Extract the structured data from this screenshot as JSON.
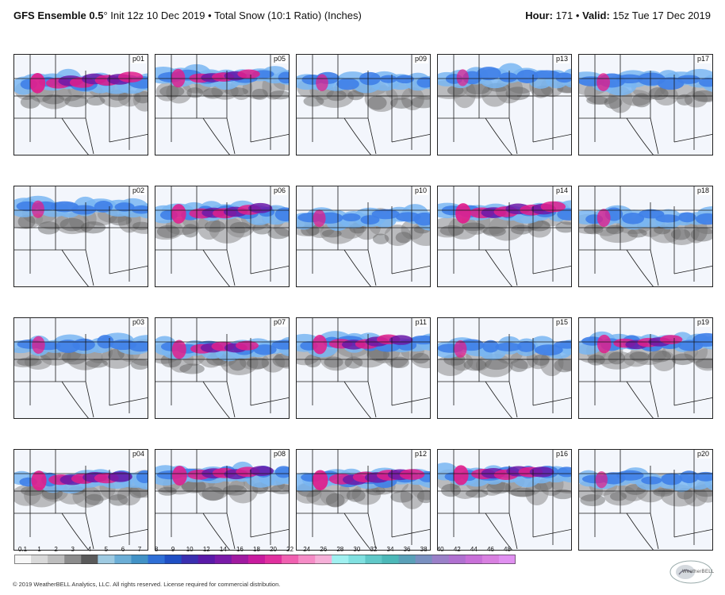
{
  "header": {
    "model": "GFS Ensemble 0.5",
    "degree": "°",
    "init": "Init 12z 10 Dec 2019",
    "bullet": "•",
    "product": "Total Snow (10:1 Ratio) (Inches)",
    "hour_label": "Hour:",
    "hour_value": "171",
    "valid_label": "Valid:",
    "valid_value": "15z Tue 17 Dec 2019"
  },
  "panels": [
    {
      "label": "p01",
      "intensity": 0.95
    },
    {
      "label": "p05",
      "intensity": 0.7
    },
    {
      "label": "p09",
      "intensity": 0.45
    },
    {
      "label": "p13",
      "intensity": 0.4
    },
    {
      "label": "p17",
      "intensity": 0.6
    },
    {
      "label": "p02",
      "intensity": 0.5
    },
    {
      "label": "p06",
      "intensity": 0.85
    },
    {
      "label": "p10",
      "intensity": 0.5
    },
    {
      "label": "p14",
      "intensity": 0.95
    },
    {
      "label": "p18",
      "intensity": 0.6
    },
    {
      "label": "p03",
      "intensity": 0.55
    },
    {
      "label": "p07",
      "intensity": 0.75
    },
    {
      "label": "p11",
      "intensity": 0.8
    },
    {
      "label": "p15",
      "intensity": 0.5
    },
    {
      "label": "p19",
      "intensity": 0.7
    },
    {
      "label": "p04",
      "intensity": 0.9
    },
    {
      "label": "p08",
      "intensity": 0.85
    },
    {
      "label": "p12",
      "intensity": 0.95
    },
    {
      "label": "p16",
      "intensity": 0.9
    },
    {
      "label": "p20",
      "intensity": 0.4
    }
  ],
  "colorbar": {
    "labels": [
      "0.1",
      "1",
      "2",
      "3",
      "4",
      "5",
      "6",
      "7",
      "8",
      "9",
      "10",
      "12",
      "14",
      "16",
      "18",
      "20",
      "22",
      "24",
      "26",
      "28",
      "30",
      "32",
      "34",
      "36",
      "38",
      "40",
      "42",
      "44",
      "46",
      "48"
    ],
    "colors": [
      "#f7f7f7",
      "#d9d9d9",
      "#bdbdbd",
      "#8c8c8c",
      "#5a5a5a",
      "#9ecae1",
      "#6baed6",
      "#4292c6",
      "#2f6fd6",
      "#1f4fc4",
      "#3a2fb0",
      "#5a1aa8",
      "#7a1aa8",
      "#a01aa0",
      "#c81c9e",
      "#e0309e",
      "#f060b0",
      "#f58cc6",
      "#f5b0d8",
      "#a0f0f0",
      "#80e0e0",
      "#60c8c8",
      "#4cb8b8",
      "#5aa0b8",
      "#7a90c0",
      "#9a80c8",
      "#b070d0",
      "#c870d8",
      "#d880e0",
      "#e090f0"
    ]
  },
  "footer": "© 2019 WeatherBELL Analytics, LLC. All rights reserved. License required for commercial distribution.",
  "logo_text": "WeatherBELL",
  "colors": {
    "pink": "#e01e8c",
    "purple": "#6a1aa8",
    "blue": "#3f7fe8",
    "lightblue": "#79b6f2",
    "gray": "#8a8a8a",
    "darkgray": "#5a5a5a",
    "background": "#f3f6fc"
  }
}
